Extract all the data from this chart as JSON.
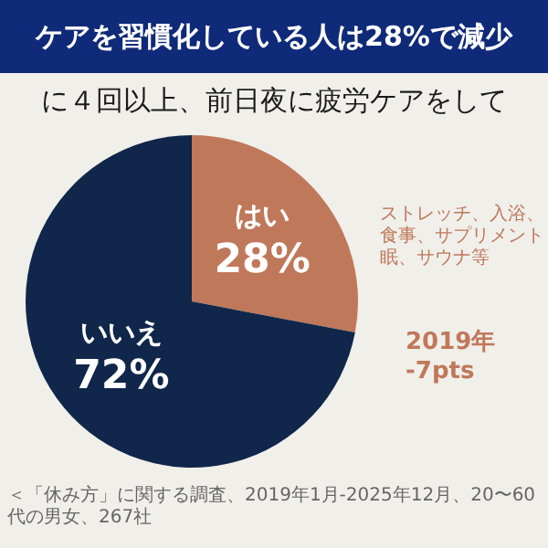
{
  "chart_data": {
    "type": "pie",
    "title": "ケアを習慣化している人は28%で減少",
    "subtitle": "に４回以上、前日夜に疲労ケアをして",
    "categories": [
      "はい",
      "いいえ"
    ],
    "values": [
      28,
      72
    ],
    "value_labels": [
      "28%",
      "72%"
    ],
    "colors": [
      "#c0785a",
      "#10264a"
    ],
    "annotations": [
      "ストレッチ、入浴、食事、サプリメント眠、サウナ等",
      "2019年 -7pts",
      "＜「休み方」に関する調査、2019年1月-2025年12月、20〜60代の男女、267社"
    ],
    "legend": false
  }
}
